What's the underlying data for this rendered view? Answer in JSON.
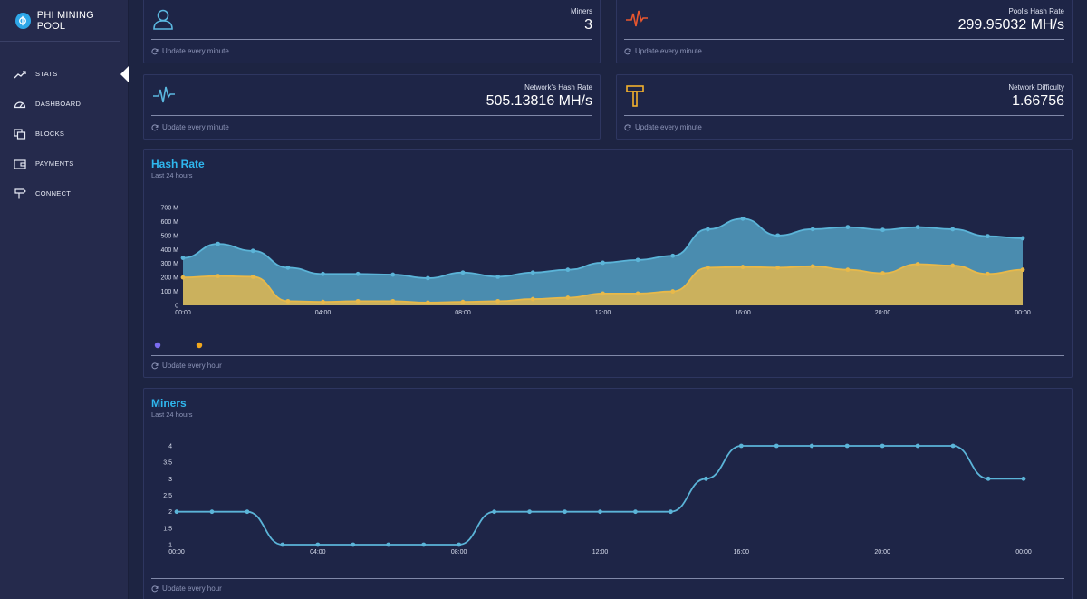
{
  "brand": {
    "title": "PHI MINING POOL"
  },
  "nav": [
    {
      "label": "STATS",
      "icon": "trending-up-icon",
      "active": true
    },
    {
      "label": "DASHBOARD",
      "icon": "speedometer-icon",
      "active": false
    },
    {
      "label": "BLOCKS",
      "icon": "blocks-icon",
      "active": false
    },
    {
      "label": "PAYMENTS",
      "icon": "wallet-icon",
      "active": false
    },
    {
      "label": "CONNECT",
      "icon": "signpost-icon",
      "active": false
    }
  ],
  "stats": {
    "miners": {
      "label": "Miners",
      "value": "3",
      "note": "Update every minute",
      "icon": "user-icon",
      "icon_color": "#5bb8e0"
    },
    "pool_hash": {
      "label": "Pool's Hash Rate",
      "value": "299.95032 MH/s",
      "note": "Update every minute",
      "icon": "pulse-icon",
      "icon_color": "#e8562e"
    },
    "network_hash": {
      "label": "Network's Hash Rate",
      "value": "505.13816 MH/s",
      "note": "Update every minute",
      "icon": "pulse-icon",
      "icon_color": "#5bb8e0"
    },
    "difficulty": {
      "label": "Network Difficulty",
      "value": "1.66756",
      "note": "Update every minute",
      "icon": "hammer-icon",
      "icon_color": "#f2b12d"
    }
  },
  "hash_chart": {
    "title": "Hash Rate",
    "subtitle": "Last 24 hours",
    "note": "Update every hour",
    "legend_colors": [
      "#7b6cf0",
      "#f2a81d"
    ]
  },
  "miners_chart": {
    "title": "Miners",
    "subtitle": "Last 24 hours",
    "note": "Update every hour"
  },
  "colors": {
    "network": "#5bb4d8",
    "pool": "#e8b94a",
    "accent": "#2fb7ee"
  },
  "chart_data": [
    {
      "type": "area",
      "title": "Hash Rate",
      "subtitle": "Last 24 hours",
      "x_tick_labels": [
        "00:00",
        "04:00",
        "08:00",
        "12:00",
        "16:00",
        "20:00",
        "00:00"
      ],
      "y_tick_labels": [
        "0",
        "100 M",
        "200 M",
        "300 M",
        "400 M",
        "500 M",
        "600 M",
        "700 M"
      ],
      "ylim": [
        0,
        700
      ],
      "x": [
        0,
        1,
        2,
        3,
        4,
        5,
        6,
        7,
        8,
        9,
        10,
        11,
        12,
        13,
        14,
        15,
        16,
        17,
        18,
        19,
        20,
        21,
        22,
        23,
        24
      ],
      "series": [
        {
          "color": "#5bb4d8",
          "values": [
            340,
            440,
            390,
            270,
            225,
            225,
            220,
            195,
            235,
            205,
            235,
            255,
            305,
            325,
            355,
            545,
            620,
            500,
            545,
            560,
            540,
            560,
            545,
            495,
            480
          ]
        },
        {
          "color": "#e8b94a",
          "values": [
            200,
            210,
            205,
            30,
            25,
            30,
            30,
            20,
            25,
            30,
            45,
            55,
            85,
            85,
            100,
            270,
            275,
            270,
            280,
            255,
            230,
            295,
            285,
            225,
            255
          ]
        }
      ],
      "grid": false
    },
    {
      "type": "line",
      "title": "Miners",
      "subtitle": "Last 24 hours",
      "x_tick_labels": [
        "00:00",
        "04:00",
        "08:00",
        "12:00",
        "16:00",
        "20:00",
        "00:00"
      ],
      "y_tick_labels": [
        "1",
        "1.5",
        "2",
        "2.5",
        "3",
        "3.5",
        "4"
      ],
      "ylim": [
        1,
        4
      ],
      "x": [
        0,
        1,
        2,
        3,
        4,
        5,
        6,
        7,
        8,
        9,
        10,
        11,
        12,
        13,
        14,
        15,
        16,
        17,
        18,
        19,
        20,
        21,
        22,
        23,
        24
      ],
      "series": [
        {
          "color": "#5bb4d8",
          "values": [
            2,
            2,
            2,
            1,
            1,
            1,
            1,
            1,
            1,
            2,
            2,
            2,
            2,
            2,
            2,
            3,
            4,
            4,
            4,
            4,
            4,
            4,
            4,
            3,
            3
          ]
        }
      ],
      "grid": false
    }
  ]
}
